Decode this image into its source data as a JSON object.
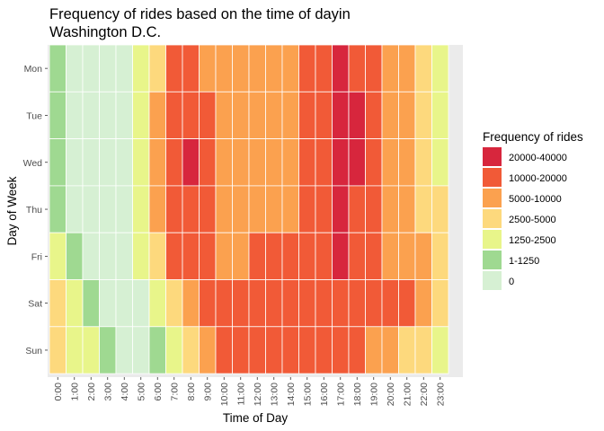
{
  "chart_data": {
    "type": "heatmap",
    "title_lines": [
      "Frequency of rides based on the time of dayin",
      "Washington D.C."
    ],
    "xlabel": "Time of Day",
    "ylabel": "Day of Week",
    "x_categories": [
      "0:00",
      "1:00",
      "2:00",
      "3:00",
      "4:00",
      "5:00",
      "6:00",
      "7:00",
      "8:00",
      "9:00",
      "10:00",
      "11:00",
      "12:00",
      "13:00",
      "14:00",
      "15:00",
      "16:00",
      "17:00",
      "18:00",
      "19:00",
      "20:00",
      "21:00",
      "22:00",
      "23:00"
    ],
    "y_categories": [
      "Mon",
      "Tue",
      "Wed",
      "Thu",
      "Fri",
      "Sat",
      "Sun"
    ],
    "legend": {
      "title": "Frequency of rides",
      "position": "right",
      "bins": [
        {
          "label": "20000-40000",
          "color": "#D7263D"
        },
        {
          "label": "10000-20000",
          "color": "#F15A37"
        },
        {
          "label": "5000-10000",
          "color": "#FBA14F"
        },
        {
          "label": "2500-5000",
          "color": "#FDD97D"
        },
        {
          "label": "1250-2500",
          "color": "#E8F58A"
        },
        {
          "label": "1-1250",
          "color": "#9FD991"
        },
        {
          "label": "0",
          "color": "#D6F0D3"
        }
      ]
    },
    "cells": [
      [
        5,
        6,
        6,
        6,
        6,
        4,
        3,
        1,
        1,
        2,
        2,
        2,
        2,
        2,
        2,
        1,
        1,
        0,
        1,
        1,
        2,
        2,
        3,
        4
      ],
      [
        5,
        6,
        6,
        6,
        6,
        4,
        2,
        1,
        1,
        1,
        2,
        2,
        2,
        2,
        2,
        1,
        1,
        0,
        0,
        1,
        2,
        2,
        3,
        4
      ],
      [
        5,
        6,
        6,
        6,
        6,
        4,
        2,
        1,
        0,
        1,
        2,
        2,
        2,
        2,
        2,
        1,
        1,
        0,
        0,
        1,
        2,
        2,
        3,
        4
      ],
      [
        5,
        6,
        6,
        6,
        6,
        4,
        2,
        1,
        1,
        1,
        2,
        2,
        2,
        2,
        2,
        1,
        1,
        0,
        1,
        1,
        2,
        2,
        3,
        3
      ],
      [
        4,
        5,
        6,
        6,
        6,
        4,
        3,
        1,
        1,
        1,
        2,
        2,
        1,
        1,
        1,
        1,
        1,
        0,
        1,
        1,
        2,
        2,
        2,
        3
      ],
      [
        3,
        4,
        5,
        6,
        6,
        6,
        4,
        3,
        2,
        1,
        1,
        1,
        1,
        1,
        1,
        1,
        1,
        1,
        1,
        1,
        1,
        1,
        2,
        3
      ],
      [
        3,
        4,
        4,
        5,
        6,
        6,
        5,
        4,
        3,
        2,
        1,
        1,
        1,
        1,
        1,
        1,
        1,
        1,
        1,
        2,
        2,
        3,
        3,
        4
      ]
    ],
    "grid": true
  }
}
